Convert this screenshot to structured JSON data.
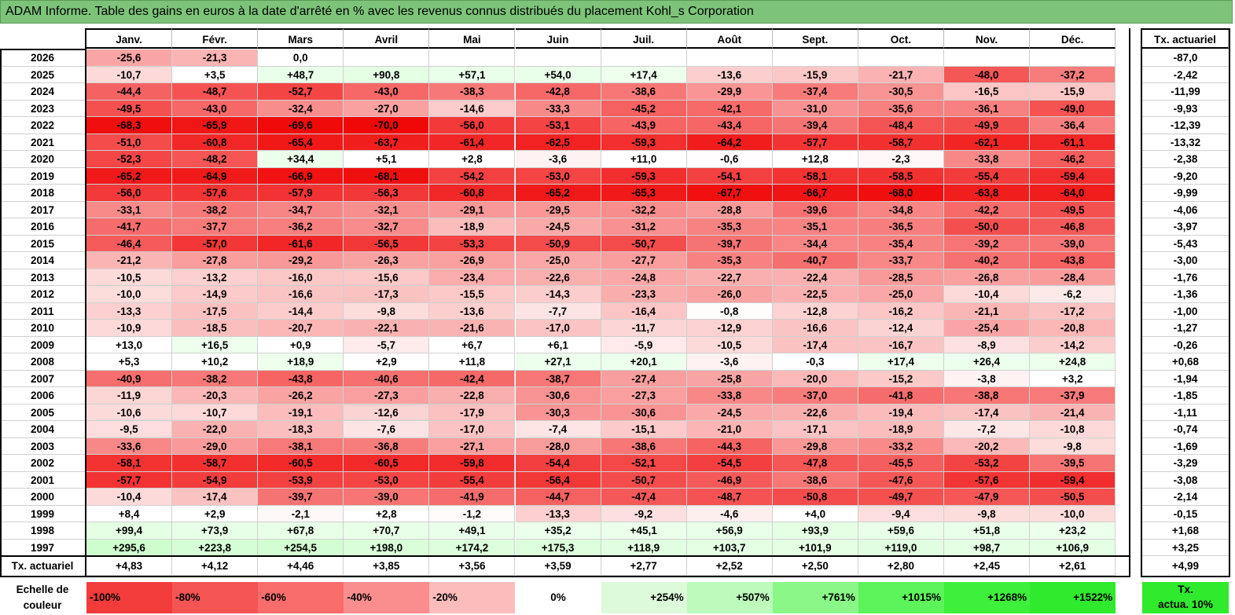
{
  "title": "ADAM Informe. Table des gains en euros à la date d'arrêté en % avec les revenus connus distribués du placement Kohl_s Corporation",
  "chart_data": {
    "type": "heatmap",
    "title": "ADAM Informe. Table des gains en euros à la date d'arrêté en % avec les revenus connus distribués du placement Kohl_s Corporation",
    "columns": [
      "Janv.",
      "Févr.",
      "Mars",
      "Avril",
      "Mai",
      "Juin",
      "Juil.",
      "Août",
      "Sept.",
      "Oct.",
      "Nov.",
      "Déc."
    ],
    "actuarial_header": "Tx. actuariel",
    "rows": [
      {
        "year": "2026",
        "values": [
          "-25,6",
          "-21,3",
          "0,0",
          "",
          "",
          "",
          "",
          "",
          "",
          "",
          "",
          ""
        ],
        "rate": "-87,0"
      },
      {
        "year": "2025",
        "values": [
          "-10,7",
          "+3,5",
          "+48,7",
          "+90,8",
          "+57,1",
          "+54,0",
          "+17,4",
          "-13,6",
          "-15,9",
          "-21,7",
          "-48,0",
          "-37,2"
        ],
        "rate": "-2,42"
      },
      {
        "year": "2024",
        "values": [
          "-44,4",
          "-48,7",
          "-52,7",
          "-43,0",
          "-38,3",
          "-42,8",
          "-38,6",
          "-29,9",
          "-37,4",
          "-30,5",
          "-16,5",
          "-15,9"
        ],
        "rate": "-11,99"
      },
      {
        "year": "2023",
        "values": [
          "-49,5",
          "-43,0",
          "-32,4",
          "-27,0",
          "-14,6",
          "-33,3",
          "-45,2",
          "-42,1",
          "-31,0",
          "-35,6",
          "-36,1",
          "-49,0"
        ],
        "rate": "-9,93"
      },
      {
        "year": "2022",
        "values": [
          "-68,3",
          "-65,9",
          "-69,6",
          "-70,0",
          "-56,0",
          "-53,1",
          "-43,9",
          "-43,4",
          "-39,4",
          "-48,4",
          "-49,9",
          "-36,4"
        ],
        "rate": "-12,39"
      },
      {
        "year": "2021",
        "values": [
          "-51,0",
          "-60,8",
          "-65,4",
          "-63,7",
          "-61,4",
          "-62,5",
          "-59,3",
          "-64,2",
          "-57,7",
          "-58,7",
          "-62,1",
          "-61,1"
        ],
        "rate": "-13,32"
      },
      {
        "year": "2020",
        "values": [
          "-52,3",
          "-48,2",
          "+34,4",
          "+5,1",
          "+2,8",
          "-3,6",
          "+11,0",
          "-0,6",
          "+12,8",
          "-2,3",
          "-33,8",
          "-46,2"
        ],
        "rate": "-2,38"
      },
      {
        "year": "2019",
        "values": [
          "-65,2",
          "-64,9",
          "-66,9",
          "-68,1",
          "-54,2",
          "-53,0",
          "-59,3",
          "-54,1",
          "-58,1",
          "-58,5",
          "-55,4",
          "-59,4"
        ],
        "rate": "-9,20"
      },
      {
        "year": "2018",
        "values": [
          "-56,0",
          "-57,6",
          "-57,9",
          "-56,3",
          "-60,8",
          "-65,2",
          "-65,3",
          "-67,7",
          "-66,7",
          "-68,0",
          "-63,8",
          "-64,0"
        ],
        "rate": "-9,99"
      },
      {
        "year": "2017",
        "values": [
          "-33,1",
          "-38,2",
          "-34,7",
          "-32,1",
          "-29,1",
          "-29,5",
          "-32,2",
          "-28,8",
          "-39,6",
          "-34,8",
          "-42,2",
          "-49,5"
        ],
        "rate": "-4,06"
      },
      {
        "year": "2016",
        "values": [
          "-41,7",
          "-37,7",
          "-36,2",
          "-32,7",
          "-18,9",
          "-24,5",
          "-31,2",
          "-35,3",
          "-35,1",
          "-36,5",
          "-50,0",
          "-46,8"
        ],
        "rate": "-3,97"
      },
      {
        "year": "2015",
        "values": [
          "-46,4",
          "-57,0",
          "-61,6",
          "-56,5",
          "-53,3",
          "-50,9",
          "-50,7",
          "-39,7",
          "-34,4",
          "-35,4",
          "-39,2",
          "-39,0"
        ],
        "rate": "-5,43"
      },
      {
        "year": "2014",
        "values": [
          "-21,2",
          "-27,8",
          "-29,2",
          "-26,3",
          "-26,9",
          "-25,0",
          "-27,7",
          "-35,3",
          "-40,7",
          "-33,7",
          "-40,2",
          "-43,8"
        ],
        "rate": "-3,00"
      },
      {
        "year": "2013",
        "values": [
          "-10,5",
          "-13,2",
          "-16,0",
          "-15,6",
          "-23,4",
          "-22,6",
          "-24,8",
          "-22,7",
          "-22,4",
          "-28,5",
          "-26,8",
          "-28,4"
        ],
        "rate": "-1,76"
      },
      {
        "year": "2012",
        "values": [
          "-10,0",
          "-14,9",
          "-16,6",
          "-17,3",
          "-15,5",
          "-14,3",
          "-23,3",
          "-26,0",
          "-22,5",
          "-25,0",
          "-10,4",
          "-6,2"
        ],
        "rate": "-1,36"
      },
      {
        "year": "2011",
        "values": [
          "-13,3",
          "-17,5",
          "-14,4",
          "-9,8",
          "-13,6",
          "-7,7",
          "-16,4",
          "-0,8",
          "-12,8",
          "-16,2",
          "-21,1",
          "-17,2"
        ],
        "rate": "-1,00"
      },
      {
        "year": "2010",
        "values": [
          "-10,9",
          "-18,5",
          "-20,7",
          "-22,1",
          "-21,6",
          "-17,0",
          "-11,7",
          "-12,9",
          "-16,6",
          "-12,4",
          "-25,4",
          "-20,8"
        ],
        "rate": "-1,27"
      },
      {
        "year": "2009",
        "values": [
          "+13,0",
          "+16,5",
          "+0,9",
          "-5,7",
          "+6,7",
          "+6,1",
          "-5,9",
          "-10,5",
          "-17,4",
          "-16,7",
          "-8,9",
          "-14,2"
        ],
        "rate": "-0,26"
      },
      {
        "year": "2008",
        "values": [
          "+5,3",
          "+10,2",
          "+18,9",
          "+2,9",
          "+11,8",
          "+27,1",
          "+20,1",
          "-3,6",
          "-0,3",
          "+17,4",
          "+26,4",
          "+24,8"
        ],
        "rate": "+0,68"
      },
      {
        "year": "2007",
        "values": [
          "-40,9",
          "-38,2",
          "-43,8",
          "-40,6",
          "-42,4",
          "-38,7",
          "-27,4",
          "-25,8",
          "-20,0",
          "-15,2",
          "-3,8",
          "+3,2"
        ],
        "rate": "-1,94"
      },
      {
        "year": "2006",
        "values": [
          "-11,9",
          "-20,3",
          "-26,2",
          "-27,3",
          "-22,8",
          "-30,6",
          "-27,3",
          "-33,8",
          "-37,0",
          "-41,8",
          "-38,8",
          "-37,9"
        ],
        "rate": "-1,85"
      },
      {
        "year": "2005",
        "values": [
          "-10,6",
          "-10,7",
          "-19,1",
          "-12,6",
          "-17,9",
          "-30,3",
          "-30,6",
          "-24,5",
          "-22,6",
          "-19,4",
          "-17,4",
          "-21,4"
        ],
        "rate": "-1,11"
      },
      {
        "year": "2004",
        "values": [
          "-9,5",
          "-22,0",
          "-18,3",
          "-7,6",
          "-17,0",
          "-7,4",
          "-15,1",
          "-21,0",
          "-17,1",
          "-18,9",
          "-7,2",
          "-10,8"
        ],
        "rate": "-0,74"
      },
      {
        "year": "2003",
        "values": [
          "-33,6",
          "-29,0",
          "-38,1",
          "-36,8",
          "-27,1",
          "-28,0",
          "-38,6",
          "-44,3",
          "-29,8",
          "-33,2",
          "-20,2",
          "-9,8"
        ],
        "rate": "-1,69"
      },
      {
        "year": "2002",
        "values": [
          "-58,1",
          "-58,7",
          "-60,5",
          "-60,5",
          "-59,8",
          "-54,4",
          "-52,1",
          "-54,5",
          "-47,8",
          "-45,5",
          "-53,2",
          "-39,5"
        ],
        "rate": "-3,29"
      },
      {
        "year": "2001",
        "values": [
          "-57,7",
          "-54,9",
          "-53,9",
          "-53,0",
          "-55,4",
          "-56,4",
          "-50,7",
          "-46,9",
          "-38,6",
          "-47,6",
          "-57,6",
          "-59,4"
        ],
        "rate": "-3,08"
      },
      {
        "year": "2000",
        "values": [
          "-10,4",
          "-17,4",
          "-39,7",
          "-39,0",
          "-41,9",
          "-44,7",
          "-47,4",
          "-48,7",
          "-50,8",
          "-49,7",
          "-47,9",
          "-50,5"
        ],
        "rate": "-2,14"
      },
      {
        "year": "1999",
        "values": [
          "+8,4",
          "+2,9",
          "-2,1",
          "+2,8",
          "-1,2",
          "-13,3",
          "-9,2",
          "-4,6",
          "+4,0",
          "-9,4",
          "-9,8",
          "-10,0"
        ],
        "rate": "-0,15"
      },
      {
        "year": "1998",
        "values": [
          "+99,4",
          "+73,9",
          "+67,8",
          "+70,7",
          "+49,1",
          "+35,2",
          "+45,1",
          "+56,9",
          "+93,9",
          "+59,6",
          "+51,8",
          "+23,2"
        ],
        "rate": "+1,68"
      },
      {
        "year": "1997",
        "values": [
          "+295,6",
          "+223,8",
          "+254,5",
          "+198,0",
          "+174,2",
          "+175,3",
          "+118,9",
          "+103,7",
          "+101,9",
          "+119,0",
          "+98,7",
          "+106,9"
        ],
        "rate": "+3,25"
      }
    ],
    "summary_row": {
      "label": "Tx. actuariel",
      "values": [
        "+4,83",
        "+4,12",
        "+4,46",
        "+3,85",
        "+3,56",
        "+3,59",
        "+2,77",
        "+2,52",
        "+2,50",
        "+2,80",
        "+2,45",
        "+2,61"
      ],
      "rate": "+4,99"
    },
    "legend": {
      "label_line1": "Echelle de",
      "label_line2": "couleur",
      "steps": [
        "-100%",
        "-80%",
        "-60%",
        "-40%",
        "-20%",
        "0%",
        "+254%",
        "+507%",
        "+761%",
        "+1015%",
        "+1268%",
        "+1522%"
      ],
      "step_colors": [
        "#f23b3b",
        "#f55454",
        "#f86c6c",
        "#fa8e8e",
        "#fdbcbc",
        "#ffffff",
        "#ddfadb",
        "#bdfabb",
        "#8af788",
        "#5cf45a",
        "#3ef03c",
        "#2fea2d"
      ],
      "rate_box_line1": "Tx.",
      "rate_box_line2": "actua. 10%",
      "rate_box_color": "#2fea2d"
    }
  }
}
